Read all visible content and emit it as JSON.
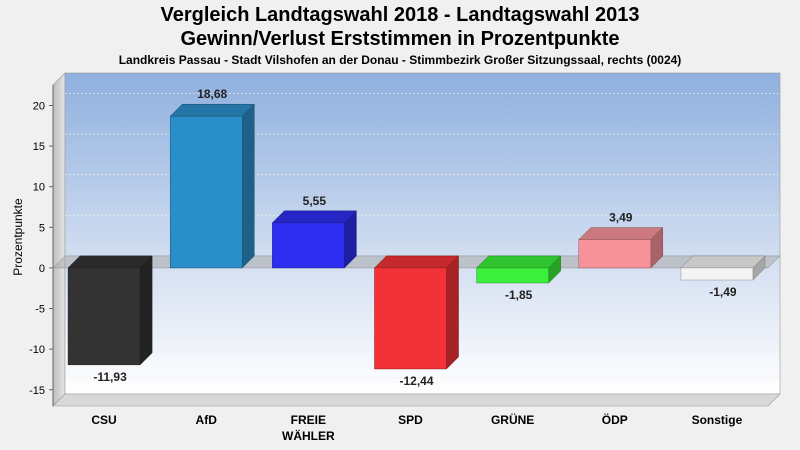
{
  "chart_data": {
    "type": "bar",
    "title_line1": "Vergleich Landtagswahl 2018 - Landtagswahl 2013",
    "title_line2": "Gewinn/Verlust Erststimmen in Prozentpunkte",
    "subtitle": "Landkreis Passau - Stadt Vilshofen an der Donau - Stimmbezirk Großer Sitzungssaal, rechts (0024)",
    "ylabel": "Prozentpunkte",
    "ylim": [
      -17,
      24
    ],
    "yticks": [
      "20",
      "15",
      "10",
      "5",
      "0",
      "-5",
      "-10",
      "-15"
    ],
    "ytick_values": [
      20,
      15,
      10,
      5,
      0,
      -5,
      -10,
      -15
    ],
    "categories": [
      {
        "name": "CSU",
        "name2": ""
      },
      {
        "name": "AfD",
        "name2": ""
      },
      {
        "name": "FREIE",
        "name2": "WÄHLER"
      },
      {
        "name": "SPD",
        "name2": ""
      },
      {
        "name": "GRÜNE",
        "name2": ""
      },
      {
        "name": "ÖDP",
        "name2": ""
      },
      {
        "name": "Sonstige",
        "name2": ""
      }
    ],
    "values": [
      -11.93,
      18.68,
      5.55,
      -12.44,
      -1.85,
      3.49,
      -1.49
    ],
    "value_labels": [
      "-11,93",
      "18,68",
      "5,55",
      "-12,44",
      "-1,85",
      "3,49",
      "-1,49"
    ],
    "colors": [
      "#333333",
      "#2a8fc8",
      "#2e2ef0",
      "#f23236",
      "#3bef3b",
      "#f7929a",
      "#f4f4f4"
    ],
    "grid": true
  }
}
